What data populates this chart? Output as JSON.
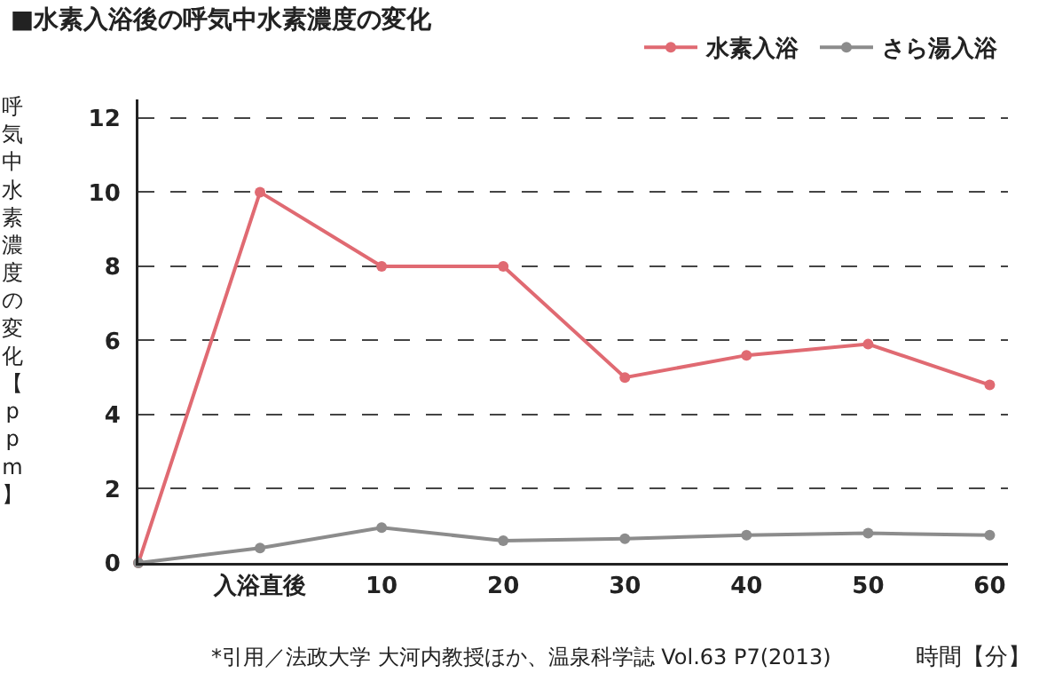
{
  "chart_data": {
    "type": "line",
    "title": "■水素入浴後の呼気中水素濃度の変化",
    "xlabel": "時間【分】",
    "ylabel": "呼気中水素濃度の変化【ppm】",
    "categories": [
      null,
      "入浴直後",
      "10",
      "20",
      "30",
      "40",
      "50",
      "60"
    ],
    "series": [
      {
        "name": "水素入浴",
        "color": "#e06a72",
        "values": [
          0,
          10,
          8,
          8,
          5,
          5.6,
          5.9,
          4.8
        ]
      },
      {
        "name": "さら湯入浴",
        "color": "#8c8c8c",
        "values": [
          0,
          0.4,
          0.95,
          0.6,
          0.65,
          0.75,
          0.8,
          0.75
        ]
      }
    ],
    "ylim": [
      0,
      12.5
    ],
    "yticks": [
      0,
      2,
      4,
      6,
      8,
      10,
      12
    ],
    "grid": "y",
    "legend": "top right",
    "marker": "circle",
    "line_style": "solid",
    "annotations": [
      "*引用／法政大学 大河内教授ほか、温泉科学誌 Vol.63 P7(2013)"
    ]
  }
}
